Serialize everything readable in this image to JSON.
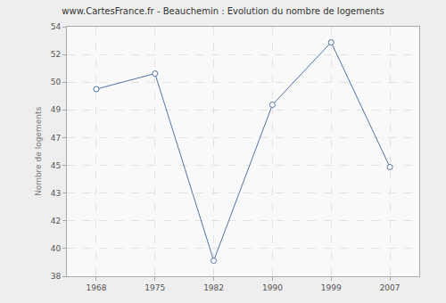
{
  "chart_data": {
    "type": "line",
    "title": "www.CartesFrance.fr - Beauchemin : Evolution du nombre de logements",
    "y_label": "Nombre de logements",
    "categories": [
      "1968",
      "1975",
      "1982",
      "1990",
      "1999",
      "2007"
    ],
    "values": [
      50,
      51,
      39,
      49,
      53,
      45
    ],
    "color": "#4f74a0",
    "marker": "circle",
    "ylim": [
      38,
      54
    ],
    "yticks": [
      38,
      {
        "value": 39.778,
        "label": "40"
      },
      {
        "value": 41.556,
        "label": "42"
      },
      {
        "value": 43.333,
        "label": "43"
      },
      {
        "value": 45.111,
        "label": "45"
      },
      {
        "value": 46.889,
        "label": "47"
      },
      {
        "value": 48.667,
        "label": "49"
      },
      {
        "value": 50.444,
        "label": "50"
      },
      {
        "value": 52.222,
        "label": "52"
      },
      54
    ],
    "grid": true
  }
}
